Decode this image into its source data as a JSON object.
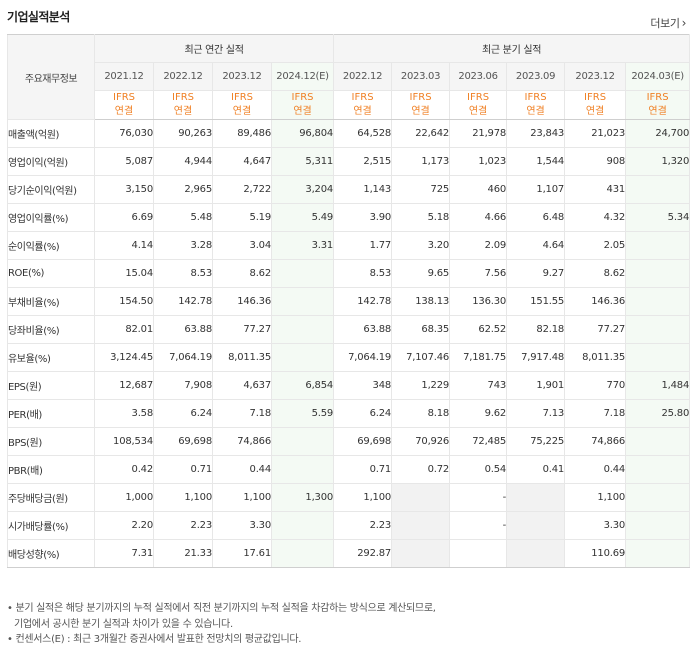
{
  "title": "기업실적분석",
  "more": "더보기",
  "corner_label": "주요재무정보",
  "groups": {
    "annual": "최근 연간 실적",
    "quarter": "최근 분기 실적"
  },
  "periods": [
    "2021.12",
    "2022.12",
    "2023.12",
    "2024.12(E)",
    "2022.12",
    "2023.03",
    "2023.06",
    "2023.09",
    "2023.12",
    "2024.03(E)"
  ],
  "ifrs": {
    "top": "IFRS",
    "bottom": "연결"
  },
  "rows": [
    {
      "label": "매출액(억원)",
      "values": [
        "76,030",
        "90,263",
        "89,486",
        "96,804",
        "64,528",
        "22,642",
        "21,978",
        "23,843",
        "21,023",
        "24,700"
      ]
    },
    {
      "label": "영업이익(억원)",
      "values": [
        "5,087",
        "4,944",
        "4,647",
        "5,311",
        "2,515",
        "1,173",
        "1,023",
        "1,544",
        "908",
        "1,320"
      ]
    },
    {
      "label": "당기순이익(억원)",
      "values": [
        "3,150",
        "2,965",
        "2,722",
        "3,204",
        "1,143",
        "725",
        "460",
        "1,107",
        "431",
        ""
      ]
    },
    {
      "label": "영업이익률(%)",
      "values": [
        "6.69",
        "5.48",
        "5.19",
        "5.49",
        "3.90",
        "5.18",
        "4.66",
        "6.48",
        "4.32",
        "5.34"
      ]
    },
    {
      "label": "순이익률(%)",
      "values": [
        "4.14",
        "3.28",
        "3.04",
        "3.31",
        "1.77",
        "3.20",
        "2.09",
        "4.64",
        "2.05",
        ""
      ]
    },
    {
      "label": "ROE(%)",
      "values": [
        "15.04",
        "8.53",
        "8.62",
        "",
        "8.53",
        "9.65",
        "7.56",
        "9.27",
        "8.62",
        ""
      ]
    },
    {
      "label": "부채비율(%)",
      "values": [
        "154.50",
        "142.78",
        "146.36",
        "",
        "142.78",
        "138.13",
        "136.30",
        "151.55",
        "146.36",
        ""
      ]
    },
    {
      "label": "당좌비율(%)",
      "values": [
        "82.01",
        "63.88",
        "77.27",
        "",
        "63.88",
        "68.35",
        "62.52",
        "82.18",
        "77.27",
        ""
      ]
    },
    {
      "label": "유보율(%)",
      "values": [
        "3,124.45",
        "7,064.19",
        "8,011.35",
        "",
        "7,064.19",
        "7,107.46",
        "7,181.75",
        "7,917.48",
        "8,011.35",
        ""
      ]
    },
    {
      "label": "EPS(원)",
      "values": [
        "12,687",
        "7,908",
        "4,637",
        "6,854",
        "348",
        "1,229",
        "743",
        "1,901",
        "770",
        "1,484"
      ]
    },
    {
      "label": "PER(배)",
      "values": [
        "3.58",
        "6.24",
        "7.18",
        "5.59",
        "6.24",
        "8.18",
        "9.62",
        "7.13",
        "7.18",
        "25.80"
      ]
    },
    {
      "label": "BPS(원)",
      "values": [
        "108,534",
        "69,698",
        "74,866",
        "",
        "69,698",
        "70,926",
        "72,485",
        "75,225",
        "74,866",
        ""
      ]
    },
    {
      "label": "PBR(배)",
      "values": [
        "0.42",
        "0.71",
        "0.44",
        "",
        "0.71",
        "0.72",
        "0.54",
        "0.41",
        "0.44",
        ""
      ]
    },
    {
      "label": "주당배당금(원)",
      "values": [
        "1,000",
        "1,100",
        "1,100",
        "1,300",
        "1,100",
        "",
        "-",
        "",
        "1,100",
        ""
      ]
    },
    {
      "label": "시가배당률(%)",
      "values": [
        "2.20",
        "2.23",
        "3.30",
        "",
        "2.23",
        "",
        "-",
        "",
        "3.30",
        ""
      ]
    },
    {
      "label": "배당성향(%)",
      "values": [
        "7.31",
        "21.33",
        "17.61",
        "",
        "292.87",
        "",
        "",
        "",
        "110.69",
        ""
      ]
    }
  ],
  "notes": [
    "• 분기 실적은 해당 분기까지의 누적 실적에서 직전 분기까지의 누적 실적을 차감하는 방식으로 계산되므로,",
    "기업에서 공시한 분기 실적과 차이가 있을 수 있습니다.",
    "• 컨센서스(E) : 최근 3개월간 증권사에서 발표한 전망치의 평균값입니다."
  ]
}
